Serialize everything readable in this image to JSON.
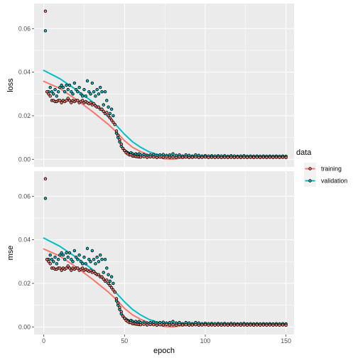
{
  "chart_data": {
    "type": "scatter",
    "xlabel": "epoch",
    "xlim": [
      -6,
      155
    ],
    "x_ticks": [
      0,
      50,
      100,
      150
    ],
    "ylim": [
      -0.0035,
      0.0715
    ],
    "y_ticks": [
      0.0,
      0.02,
      0.04,
      0.06
    ],
    "y_tick_labels": [
      "0.00",
      "0.02",
      "0.04",
      "0.06"
    ],
    "panels": [
      {
        "name": "loss",
        "ylabel": "loss"
      },
      {
        "name": "mse",
        "ylabel": "mse"
      }
    ],
    "legend": {
      "title": "data",
      "position": "right",
      "entries": [
        {
          "label": "training",
          "color": "#F8766D"
        },
        {
          "label": "validation",
          "color": "#00BFC4"
        }
      ]
    },
    "grid": true,
    "colors": {
      "panel_bg": "#EBEBEB",
      "grid": "#FFFFFF",
      "training": "#F8766D",
      "validation": "#00BFC4"
    },
    "series": [
      {
        "name": "training",
        "points": [
          [
            1,
            0.068
          ],
          [
            2,
            0.031
          ],
          [
            3,
            0.03
          ],
          [
            4,
            0.029
          ],
          [
            5,
            0.027
          ],
          [
            6,
            0.027
          ],
          [
            7,
            0.0265
          ],
          [
            8,
            0.0265
          ],
          [
            9,
            0.027
          ],
          [
            10,
            0.027
          ],
          [
            11,
            0.026
          ],
          [
            12,
            0.027
          ],
          [
            13,
            0.0265
          ],
          [
            14,
            0.027
          ],
          [
            15,
            0.028
          ],
          [
            16,
            0.027
          ],
          [
            17,
            0.026
          ],
          [
            18,
            0.027
          ],
          [
            19,
            0.0265
          ],
          [
            20,
            0.027
          ],
          [
            21,
            0.027
          ],
          [
            22,
            0.026
          ],
          [
            23,
            0.0265
          ],
          [
            24,
            0.027
          ],
          [
            25,
            0.026
          ],
          [
            26,
            0.0265
          ],
          [
            27,
            0.026
          ],
          [
            28,
            0.0255
          ],
          [
            29,
            0.026
          ],
          [
            30,
            0.025
          ],
          [
            31,
            0.0255
          ],
          [
            32,
            0.0245
          ],
          [
            33,
            0.024
          ],
          [
            34,
            0.024
          ],
          [
            35,
            0.023
          ],
          [
            36,
            0.023
          ],
          [
            37,
            0.022
          ],
          [
            38,
            0.021
          ],
          [
            39,
            0.0215
          ],
          [
            40,
            0.02
          ],
          [
            41,
            0.019
          ],
          [
            42,
            0.018
          ],
          [
            43,
            0.017
          ],
          [
            44,
            0.016
          ],
          [
            45,
            0.013
          ],
          [
            46,
            0.011
          ],
          [
            47,
            0.009
          ],
          [
            48,
            0.007
          ],
          [
            49,
            0.005
          ],
          [
            50,
            0.004
          ],
          [
            51,
            0.003
          ],
          [
            52,
            0.0025
          ],
          [
            53,
            0.002
          ],
          [
            54,
            0.002
          ],
          [
            55,
            0.0015
          ],
          [
            56,
            0.0015
          ],
          [
            57,
            0.0013
          ],
          [
            58,
            0.0012
          ],
          [
            59,
            0.0011
          ],
          [
            60,
            0.001
          ],
          [
            62,
            0.0012
          ],
          [
            64,
            0.0009
          ],
          [
            66,
            0.0011
          ],
          [
            68,
            0.001
          ],
          [
            70,
            0.0008
          ],
          [
            72,
            0.001
          ],
          [
            74,
            0.0009
          ],
          [
            76,
            0.0011
          ],
          [
            78,
            0.0009
          ],
          [
            80,
            0.001
          ],
          [
            82,
            0.0008
          ],
          [
            84,
            0.0011
          ],
          [
            86,
            0.0009
          ],
          [
            88,
            0.001
          ],
          [
            90,
            0.0008
          ],
          [
            92,
            0.0009
          ],
          [
            94,
            0.001
          ],
          [
            96,
            0.0008
          ],
          [
            98,
            0.0009
          ],
          [
            100,
            0.001
          ],
          [
            102,
            0.0008
          ],
          [
            104,
            0.0009
          ],
          [
            106,
            0.0008
          ],
          [
            108,
            0.0009
          ],
          [
            110,
            0.0008
          ],
          [
            112,
            0.0009
          ],
          [
            114,
            0.0008
          ],
          [
            116,
            0.0009
          ],
          [
            118,
            0.0008
          ],
          [
            120,
            0.0009
          ],
          [
            122,
            0.0008
          ],
          [
            124,
            0.0009
          ],
          [
            126,
            0.0008
          ],
          [
            128,
            0.0009
          ],
          [
            130,
            0.0008
          ],
          [
            132,
            0.0009
          ],
          [
            134,
            0.0008
          ],
          [
            136,
            0.0009
          ],
          [
            138,
            0.0008
          ],
          [
            140,
            0.0009
          ],
          [
            142,
            0.0008
          ],
          [
            144,
            0.0009
          ],
          [
            146,
            0.0008
          ],
          [
            148,
            0.0009
          ],
          [
            150,
            0.0008
          ]
        ],
        "smooth": [
          [
            0,
            0.0358
          ],
          [
            10,
            0.0325
          ],
          [
            20,
            0.0275
          ],
          [
            30,
            0.022
          ],
          [
            40,
            0.016
          ],
          [
            45,
            0.0125
          ],
          [
            50,
            0.0085
          ],
          [
            55,
            0.0055
          ],
          [
            60,
            0.0035
          ],
          [
            65,
            0.002
          ],
          [
            70,
            0.001
          ],
          [
            75,
            0.0002
          ],
          [
            80,
            0.0001
          ],
          [
            85,
            0.0005
          ],
          [
            90,
            0.0008
          ],
          [
            100,
            0.0009
          ],
          [
            120,
            0.0009
          ],
          [
            150,
            0.0009
          ]
        ]
      },
      {
        "name": "validation",
        "points": [
          [
            1,
            0.059
          ],
          [
            2,
            0.031
          ],
          [
            3,
            0.031
          ],
          [
            4,
            0.033
          ],
          [
            5,
            0.031
          ],
          [
            6,
            0.03
          ],
          [
            7,
            0.032
          ],
          [
            8,
            0.029
          ],
          [
            9,
            0.031
          ],
          [
            10,
            0.033
          ],
          [
            11,
            0.034
          ],
          [
            12,
            0.033
          ],
          [
            13,
            0.031
          ],
          [
            14,
            0.034
          ],
          [
            15,
            0.032
          ],
          [
            16,
            0.034
          ],
          [
            17,
            0.031
          ],
          [
            18,
            0.03
          ],
          [
            19,
            0.035
          ],
          [
            20,
            0.032
          ],
          [
            21,
            0.031
          ],
          [
            22,
            0.033
          ],
          [
            23,
            0.03
          ],
          [
            24,
            0.029
          ],
          [
            25,
            0.032
          ],
          [
            26,
            0.029
          ],
          [
            27,
            0.036
          ],
          [
            28,
            0.031
          ],
          [
            29,
            0.03
          ],
          [
            30,
            0.035
          ],
          [
            31,
            0.031
          ],
          [
            32,
            0.029
          ],
          [
            33,
            0.032
          ],
          [
            34,
            0.03
          ],
          [
            35,
            0.033
          ],
          [
            36,
            0.031
          ],
          [
            37,
            0.025
          ],
          [
            38,
            0.031
          ],
          [
            39,
            0.027
          ],
          [
            40,
            0.024
          ],
          [
            41,
            0.021
          ],
          [
            42,
            0.023
          ],
          [
            43,
            0.02
          ],
          [
            44,
            0.016
          ],
          [
            45,
            0.012
          ],
          [
            46,
            0.01
          ],
          [
            47,
            0.008
          ],
          [
            48,
            0.006
          ],
          [
            49,
            0.005
          ],
          [
            50,
            0.004
          ],
          [
            51,
            0.0035
          ],
          [
            52,
            0.003
          ],
          [
            53,
            0.0025
          ],
          [
            54,
            0.003
          ],
          [
            55,
            0.0025
          ],
          [
            56,
            0.002
          ],
          [
            57,
            0.0025
          ],
          [
            58,
            0.002
          ],
          [
            59,
            0.0025
          ],
          [
            60,
            0.002
          ],
          [
            62,
            0.0022
          ],
          [
            64,
            0.0018
          ],
          [
            66,
            0.002
          ],
          [
            68,
            0.0022
          ],
          [
            70,
            0.0018
          ],
          [
            72,
            0.002
          ],
          [
            74,
            0.0022
          ],
          [
            76,
            0.0018
          ],
          [
            78,
            0.002
          ],
          [
            80,
            0.0025
          ],
          [
            82,
            0.0018
          ],
          [
            84,
            0.002
          ],
          [
            86,
            0.0015
          ],
          [
            88,
            0.002
          ],
          [
            90,
            0.0018
          ],
          [
            92,
            0.0015
          ],
          [
            94,
            0.002
          ],
          [
            96,
            0.0018
          ],
          [
            98,
            0.0015
          ],
          [
            100,
            0.0017
          ],
          [
            102,
            0.0015
          ],
          [
            104,
            0.0016
          ],
          [
            106,
            0.0015
          ],
          [
            108,
            0.0016
          ],
          [
            110,
            0.0015
          ],
          [
            112,
            0.0016
          ],
          [
            114,
            0.0014
          ],
          [
            116,
            0.0016
          ],
          [
            118,
            0.0015
          ],
          [
            120,
            0.0014
          ],
          [
            122,
            0.0015
          ],
          [
            124,
            0.0016
          ],
          [
            126,
            0.0014
          ],
          [
            128,
            0.0015
          ],
          [
            130,
            0.0014
          ],
          [
            132,
            0.0015
          ],
          [
            134,
            0.0014
          ],
          [
            136,
            0.0015
          ],
          [
            138,
            0.0014
          ],
          [
            140,
            0.0015
          ],
          [
            142,
            0.0014
          ],
          [
            144,
            0.0015
          ],
          [
            146,
            0.0014
          ],
          [
            148,
            0.0015
          ],
          [
            150,
            0.0014
          ]
        ],
        "smooth": [
          [
            0,
            0.0408
          ],
          [
            10,
            0.037
          ],
          [
            20,
            0.032
          ],
          [
            30,
            0.0265
          ],
          [
            40,
            0.0195
          ],
          [
            45,
            0.0155
          ],
          [
            50,
            0.0115
          ],
          [
            55,
            0.008
          ],
          [
            60,
            0.0055
          ],
          [
            65,
            0.0035
          ],
          [
            70,
            0.0023
          ],
          [
            75,
            0.0017
          ],
          [
            80,
            0.0015
          ],
          [
            90,
            0.0014
          ],
          [
            100,
            0.0014
          ],
          [
            120,
            0.0014
          ],
          [
            150,
            0.0014
          ]
        ]
      }
    ]
  }
}
